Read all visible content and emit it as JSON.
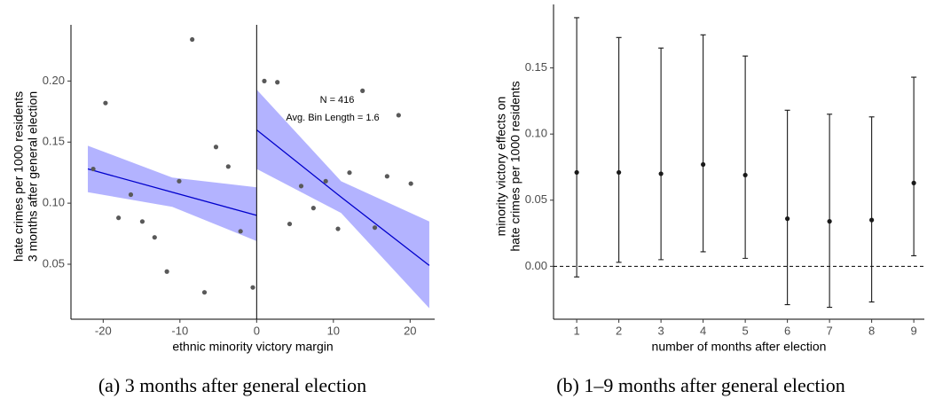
{
  "chart_data": [
    {
      "type": "scatter",
      "x": [
        -21.3,
        -19.7,
        -18.0,
        -16.4,
        -14.9,
        -13.3,
        -11.7,
        -10.1,
        -8.4,
        -6.8,
        -5.3,
        -3.7,
        -2.1,
        -0.5,
        1.0,
        2.7,
        4.3,
        5.8,
        7.4,
        9.0,
        10.6,
        12.1,
        13.8,
        15.4,
        17.0,
        18.5,
        20.1
      ],
      "values": [
        0.128,
        0.182,
        0.088,
        0.107,
        0.085,
        0.072,
        0.044,
        0.118,
        0.234,
        0.027,
        0.146,
        0.13,
        0.077,
        0.031,
        0.2,
        0.199,
        0.083,
        0.114,
        0.096,
        0.118,
        0.079,
        0.125,
        0.192,
        0.08,
        0.122,
        0.172,
        0.116
      ],
      "color": "#595959",
      "fits": [
        {
          "x": [
            -22,
            -11,
            0
          ],
          "values": [
            0.128,
            0.109,
            0.09
          ],
          "lower": [
            0.109,
            0.097,
            0.069
          ],
          "upper": [
            0.147,
            0.121,
            0.113
          ]
        },
        {
          "x": [
            0,
            11,
            22.5
          ],
          "values": [
            0.16,
            0.105,
            0.049
          ],
          "lower": [
            0.128,
            0.092,
            0.014
          ],
          "upper": [
            0.193,
            0.118,
            0.085
          ]
        }
      ],
      "fit_color": "#0000cc",
      "band_color": "#9999ff",
      "cutoff": 0,
      "annotations": [
        "N = 416",
        "Avg. Bin Length = 1.6"
      ],
      "xlabel": "ethnic minority victory margin",
      "ylabel": [
        "hate crimes per 1000 residents",
        "3 months after general election"
      ],
      "xlim": [
        -24.2,
        23.2
      ],
      "ylim": [
        0.005,
        0.246
      ],
      "xticks": [
        -20,
        -10,
        0,
        10,
        20
      ],
      "yticks": [
        0.05,
        {
          "value": 0.1,
          "label": "0.10"
        },
        0.15,
        {
          "value": 0.2,
          "label": "0.20"
        }
      ],
      "caption": "(a) 3 months after general election"
    },
    {
      "type": "errorbar",
      "x": [
        1,
        2,
        3,
        4,
        5,
        6,
        7,
        8,
        9
      ],
      "values": [
        0.071,
        0.071,
        0.07,
        0.077,
        0.069,
        0.036,
        0.034,
        0.035,
        0.063
      ],
      "lower": [
        -0.008,
        0.003,
        0.005,
        0.011,
        0.006,
        -0.029,
        -0.031,
        -0.027,
        0.008
      ],
      "upper": [
        0.188,
        0.173,
        0.165,
        0.175,
        0.159,
        0.118,
        0.115,
        0.113,
        0.143
      ],
      "color": "#1a1a1a",
      "hline": 0,
      "xlabel": "number of months after election",
      "ylabel": [
        "minority victory effects on",
        "hate crimes per 1000 residents"
      ],
      "xlim": [
        0.45,
        9.25
      ],
      "ylim": [
        -0.04,
        0.198
      ],
      "xticks": [
        1,
        2,
        3,
        4,
        5,
        6,
        7,
        8,
        9
      ],
      "yticks": [
        {
          "value": 0,
          "label": "0.00"
        },
        0.05,
        {
          "value": 0.1,
          "label": "0.10"
        },
        0.15
      ],
      "caption": "(b) 1–9 months after general election"
    }
  ]
}
